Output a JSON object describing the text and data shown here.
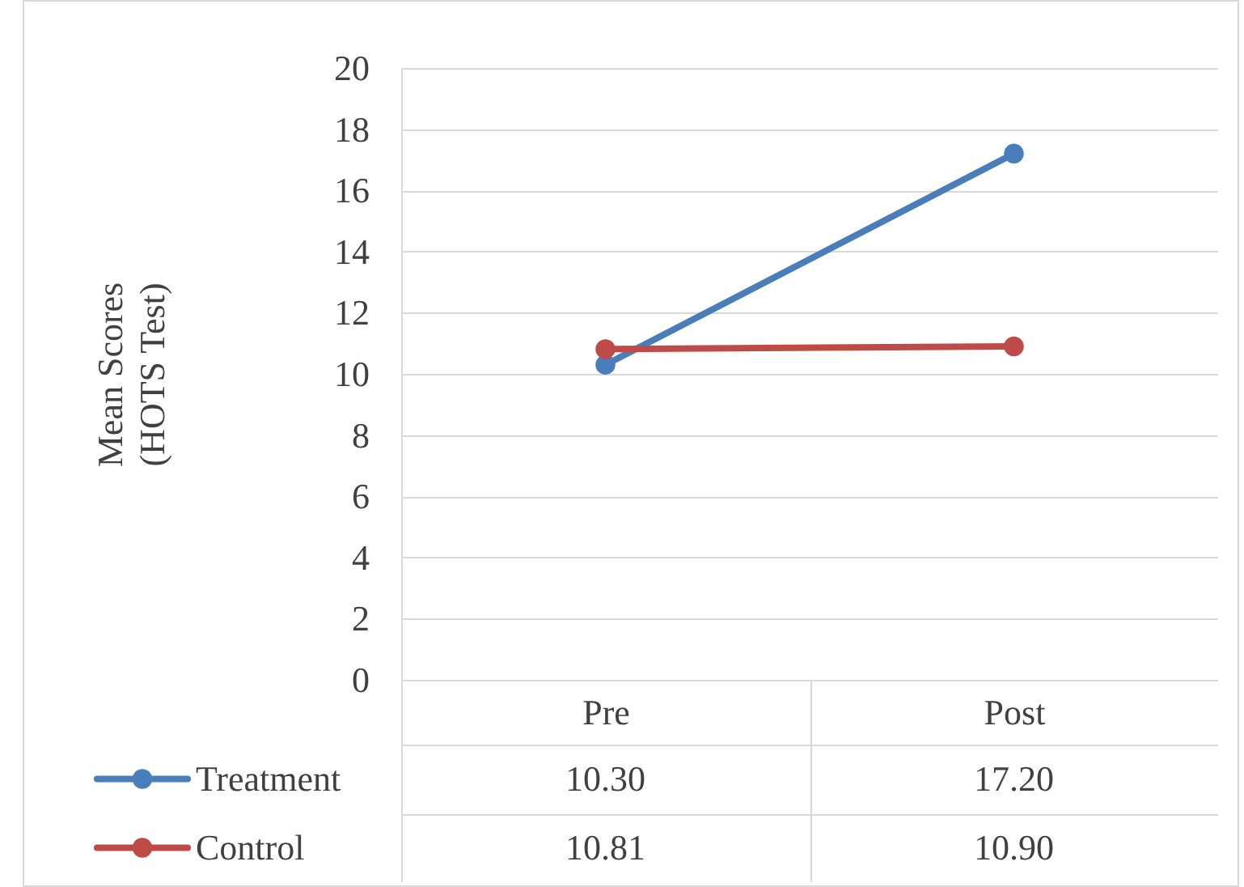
{
  "chart_data": {
    "type": "line",
    "ylabel": "Mean Scores\n(HOTS Test)",
    "categories": [
      "Pre",
      "Post"
    ],
    "series": [
      {
        "name": "Treatment",
        "color": "#4a7ebb",
        "values": [
          10.3,
          17.2
        ],
        "value_labels": [
          "10.30",
          "17.20"
        ]
      },
      {
        "name": "Control",
        "color": "#be4b48",
        "values": [
          10.81,
          10.9
        ],
        "value_labels": [
          "10.81",
          "10.90"
        ]
      }
    ],
    "ylim": [
      0,
      20
    ],
    "yticks": [
      0,
      2,
      4,
      6,
      8,
      10,
      12,
      14,
      16,
      18,
      20
    ],
    "grid": "y",
    "legend": "bottom",
    "marker": "circle",
    "line_style": "solid"
  }
}
